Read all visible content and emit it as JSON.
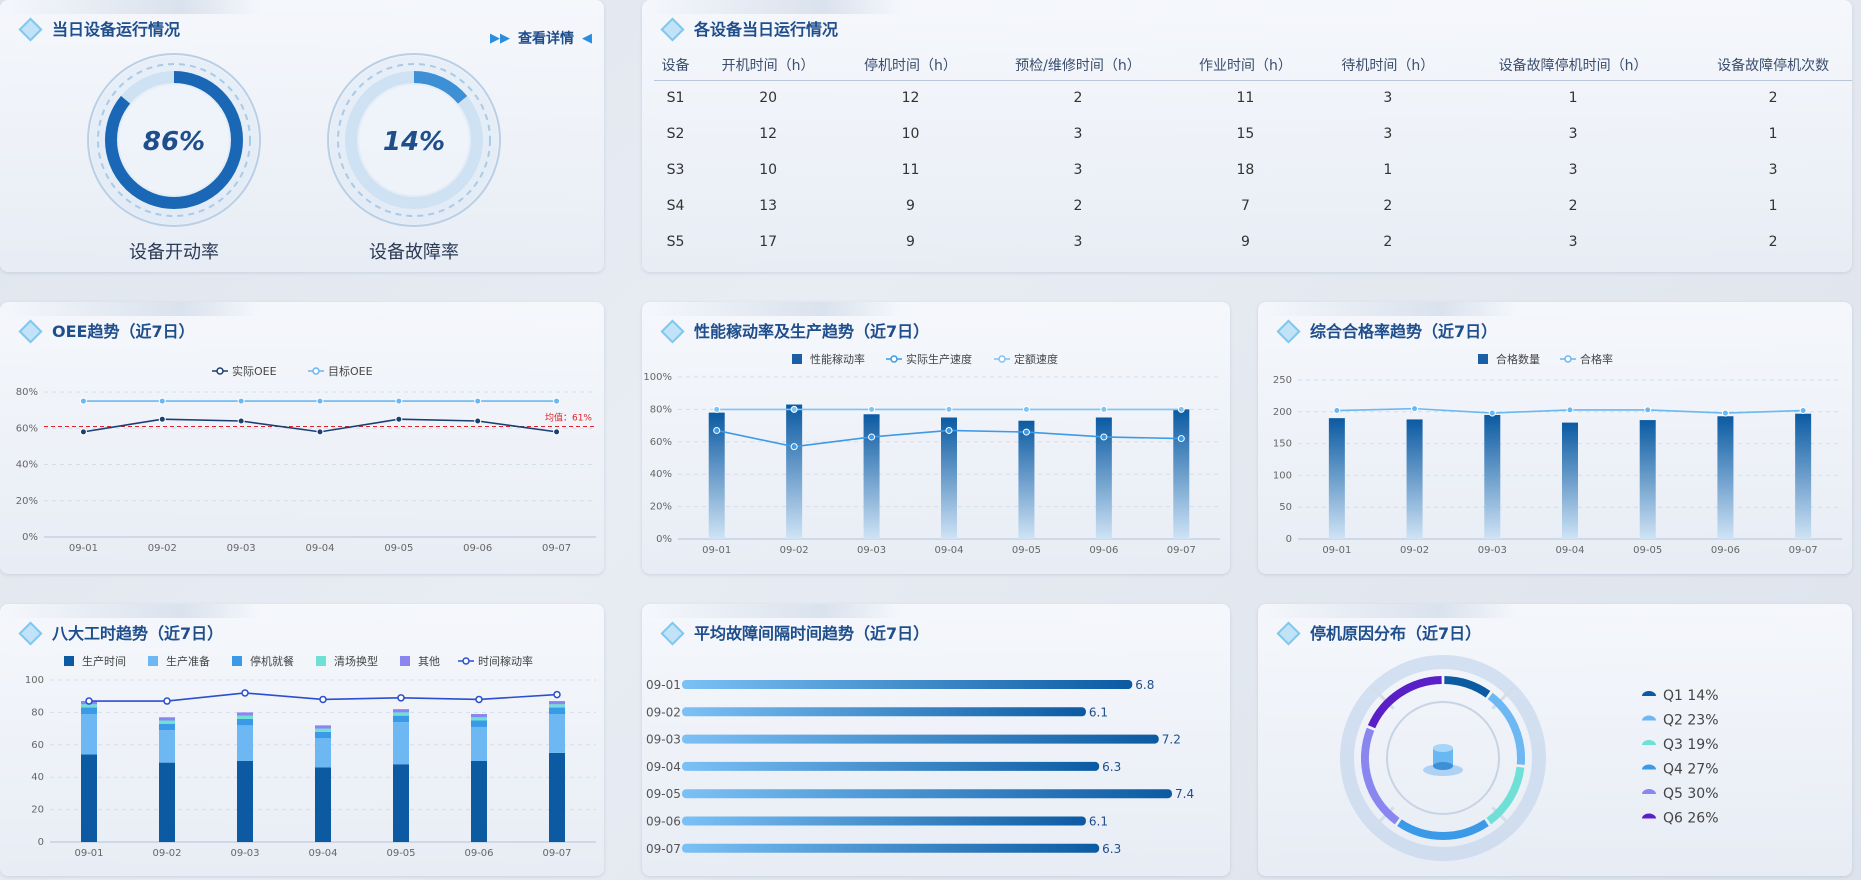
{
  "panels": {
    "gauges": {
      "title": "当日设备运行情况",
      "detail": "查看详情"
    },
    "table": {
      "title": "各设备当日运行情况"
    },
    "oee": {
      "title": "OEE趋势（近7日）"
    },
    "perf": {
      "title": "性能稼动率及生产趋势（近7日）"
    },
    "quality": {
      "title": "综合合格率趋势（近7日）"
    },
    "hours": {
      "title": "八大工时趋势（近7日）"
    },
    "mtbf": {
      "title": "平均故障间隔时间趋势（近7日）"
    },
    "stop": {
      "title": "停机原因分布（近7日）"
    }
  },
  "gauges": [
    {
      "label": "设备开动率",
      "value": "86%",
      "fraction": 0.86
    },
    {
      "label": "设备故障率",
      "value": "14%",
      "fraction": 0.14
    }
  ],
  "device_table": {
    "headers": [
      "设备",
      "开机时间（h）",
      "停机时间（h）",
      "预检/维修时间（h）",
      "作业时间（h）",
      "待机时间（h）",
      "设备故障停机时间（h）",
      "设备故障停机次数"
    ],
    "rows": [
      [
        "S1",
        "20",
        "12",
        "2",
        "11",
        "3",
        "1",
        "2"
      ],
      [
        "S2",
        "12",
        "10",
        "3",
        "15",
        "3",
        "3",
        "1"
      ],
      [
        "S3",
        "10",
        "11",
        "3",
        "18",
        "1",
        "3",
        "3"
      ],
      [
        "S4",
        "13",
        "9",
        "2",
        "7",
        "2",
        "2",
        "1"
      ],
      [
        "S5",
        "17",
        "9",
        "3",
        "9",
        "2",
        "3",
        "2"
      ]
    ]
  },
  "colors": {
    "dark_blue": "#0b5aa2",
    "mid_blue": "#4aa3ea",
    "light_blue": "#6dbaf5",
    "teal": "#6fe0d6",
    "purple": "#7b7cf0",
    "deep_purple": "#5b1fc8",
    "avg_red": "#e0232a"
  },
  "chart_data": [
    {
      "id": "oee",
      "type": "line",
      "x": [
        "09-01",
        "09-02",
        "09-03",
        "09-04",
        "09-05",
        "09-06",
        "09-07"
      ],
      "series": [
        {
          "name": "实际OEE",
          "values": [
            58,
            65,
            64,
            58,
            65,
            64,
            58
          ]
        },
        {
          "name": "目标OEE",
          "values": [
            75,
            75,
            75,
            75,
            75,
            75,
            75
          ]
        }
      ],
      "yticks": [
        "0%",
        "20%",
        "40%",
        "60%",
        "80%"
      ],
      "ylim": [
        0,
        80
      ],
      "average": {
        "label": "均值：61%",
        "value": 61
      }
    },
    {
      "id": "perf",
      "type": "bar",
      "x": [
        "09-01",
        "09-02",
        "09-03",
        "09-04",
        "09-05",
        "09-06",
        "09-07"
      ],
      "series": [
        {
          "name": "性能稼动率",
          "values": [
            78,
            83,
            77,
            75,
            73,
            75,
            80
          ]
        },
        {
          "name": "实际生产速度",
          "values": [
            67,
            57,
            63,
            67,
            66,
            63,
            62
          ]
        },
        {
          "name": "定额速度",
          "values": [
            80,
            80,
            80,
            80,
            80,
            80,
            80
          ]
        }
      ],
      "yticks": [
        "0%",
        "20%",
        "40%",
        "60%",
        "80%",
        "100%"
      ],
      "ylim": [
        0,
        100
      ]
    },
    {
      "id": "quality",
      "type": "bar",
      "x": [
        "09-01",
        "09-02",
        "09-03",
        "09-04",
        "09-05",
        "09-06",
        "09-07"
      ],
      "series": [
        {
          "name": "合格数量",
          "values": [
            190,
            188,
            195,
            183,
            187,
            193,
            197
          ]
        },
        {
          "name": "合格率",
          "values": [
            202,
            205,
            198,
            203,
            203,
            198,
            202
          ]
        }
      ],
      "yticks": [
        "0",
        "50",
        "100",
        "150",
        "200",
        "250"
      ],
      "ylim": [
        0,
        250
      ]
    },
    {
      "id": "hours",
      "type": "bar",
      "x": [
        "09-01",
        "09-02",
        "09-03",
        "09-04",
        "09-05",
        "09-06",
        "09-07"
      ],
      "series": [
        {
          "name": "生产时间",
          "values": [
            54,
            49,
            50,
            46,
            48,
            50,
            55
          ]
        },
        {
          "name": "生产准备",
          "values": [
            25,
            20,
            22,
            18,
            26,
            21,
            24
          ]
        },
        {
          "name": "停机就餐",
          "values": [
            4,
            4,
            4,
            4,
            4,
            4,
            4
          ]
        },
        {
          "name": "清场换型",
          "values": [
            2,
            2,
            2,
            2,
            2,
            2,
            2
          ]
        },
        {
          "name": "其他",
          "values": [
            2,
            2,
            2,
            2,
            2,
            2,
            2
          ]
        },
        {
          "name": "时间稼动率",
          "values": [
            87,
            87,
            92,
            88,
            89,
            88,
            91
          ]
        }
      ],
      "yticks": [
        "0",
        "20",
        "40",
        "60",
        "80",
        "100"
      ],
      "ylim": [
        0,
        100
      ]
    },
    {
      "id": "mtbf",
      "type": "bar",
      "orientation": "horizontal",
      "categories": [
        "09-01",
        "09-02",
        "09-03",
        "09-04",
        "09-05",
        "09-06",
        "09-07"
      ],
      "values": [
        6.8,
        6.1,
        7.2,
        6.3,
        7.4,
        6.1,
        6.3
      ],
      "labels": [
        "6.8",
        "6.1",
        "7.2",
        "6.3",
        "7.4",
        "6.1",
        "6.3"
      ],
      "xlim": [
        0,
        7.4
      ]
    },
    {
      "id": "stop",
      "type": "pie",
      "categories": [
        "Q1",
        "Q2",
        "Q3",
        "Q4",
        "Q5",
        "Q6"
      ],
      "values": [
        14,
        23,
        19,
        27,
        30,
        26
      ],
      "labels": [
        "Q1 14%",
        "Q2 23%",
        "Q3 19%",
        "Q4 27%",
        "Q5 30%",
        "Q6 26%"
      ]
    }
  ]
}
